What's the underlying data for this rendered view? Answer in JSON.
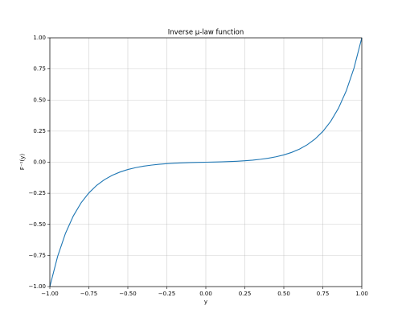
{
  "chart_data": {
    "type": "line",
    "title": "Inverse μ-law function",
    "xlabel": "y",
    "ylabel": "F⁻¹(y)",
    "x": [
      -1,
      -0.95,
      -0.9,
      -0.85,
      -0.8,
      -0.75,
      -0.7,
      -0.65,
      -0.6,
      -0.55,
      -0.5,
      -0.45,
      -0.4,
      -0.35,
      -0.3,
      -0.25,
      -0.2,
      -0.15,
      -0.1,
      -0.05,
      0,
      0.05,
      0.1,
      0.15,
      0.2,
      0.25,
      0.3,
      0.35,
      0.4,
      0.45,
      0.5,
      0.55,
      0.6,
      0.65,
      0.7,
      0.75,
      0.8,
      0.85,
      0.9,
      0.95,
      1
    ],
    "values": [
      -1,
      -0.75691,
      -0.57268,
      -0.43306,
      -0.32725,
      -0.24706,
      -0.18629,
      -0.14023,
      -0.10532,
      -0.07887,
      -0.05882,
      -0.04363,
      -0.03212,
      -0.02339,
      -0.01678,
      -0.01176,
      -0.00797,
      -0.00509,
      -0.00291,
      -0.00125,
      0,
      0.00125,
      0.00291,
      0.00509,
      0.00797,
      0.01176,
      0.01678,
      0.02339,
      0.03212,
      0.04363,
      0.05882,
      0.07887,
      0.10532,
      0.14023,
      0.18629,
      0.24706,
      0.32725,
      0.43306,
      0.57268,
      0.75691,
      1
    ],
    "color": "#1f77b4",
    "xlim": [
      -1,
      1
    ],
    "ylim": [
      -1,
      1
    ],
    "xticks": [
      {
        "value": -1,
        "label": "−1.00"
      },
      {
        "value": -0.75,
        "label": "−0.75"
      },
      {
        "value": -0.5,
        "label": "−0.50"
      },
      {
        "value": -0.25,
        "label": "−0.25"
      },
      {
        "value": 0,
        "label": "0.00"
      },
      {
        "value": 0.25,
        "label": "0.25"
      },
      {
        "value": 0.5,
        "label": "0.50"
      },
      {
        "value": 0.75,
        "label": "0.75"
      },
      {
        "value": 1,
        "label": "1.00"
      }
    ],
    "yticks": [
      {
        "value": -1,
        "label": "−1.00"
      },
      {
        "value": -0.75,
        "label": "−0.75"
      },
      {
        "value": -0.5,
        "label": "−0.50"
      },
      {
        "value": -0.25,
        "label": "−0.25"
      },
      {
        "value": 0,
        "label": "0.00"
      },
      {
        "value": 0.25,
        "label": "0.25"
      },
      {
        "value": 0.5,
        "label": "0.50"
      },
      {
        "value": 0.75,
        "label": "0.75"
      },
      {
        "value": 1,
        "label": "1.00"
      }
    ],
    "grid": true
  }
}
